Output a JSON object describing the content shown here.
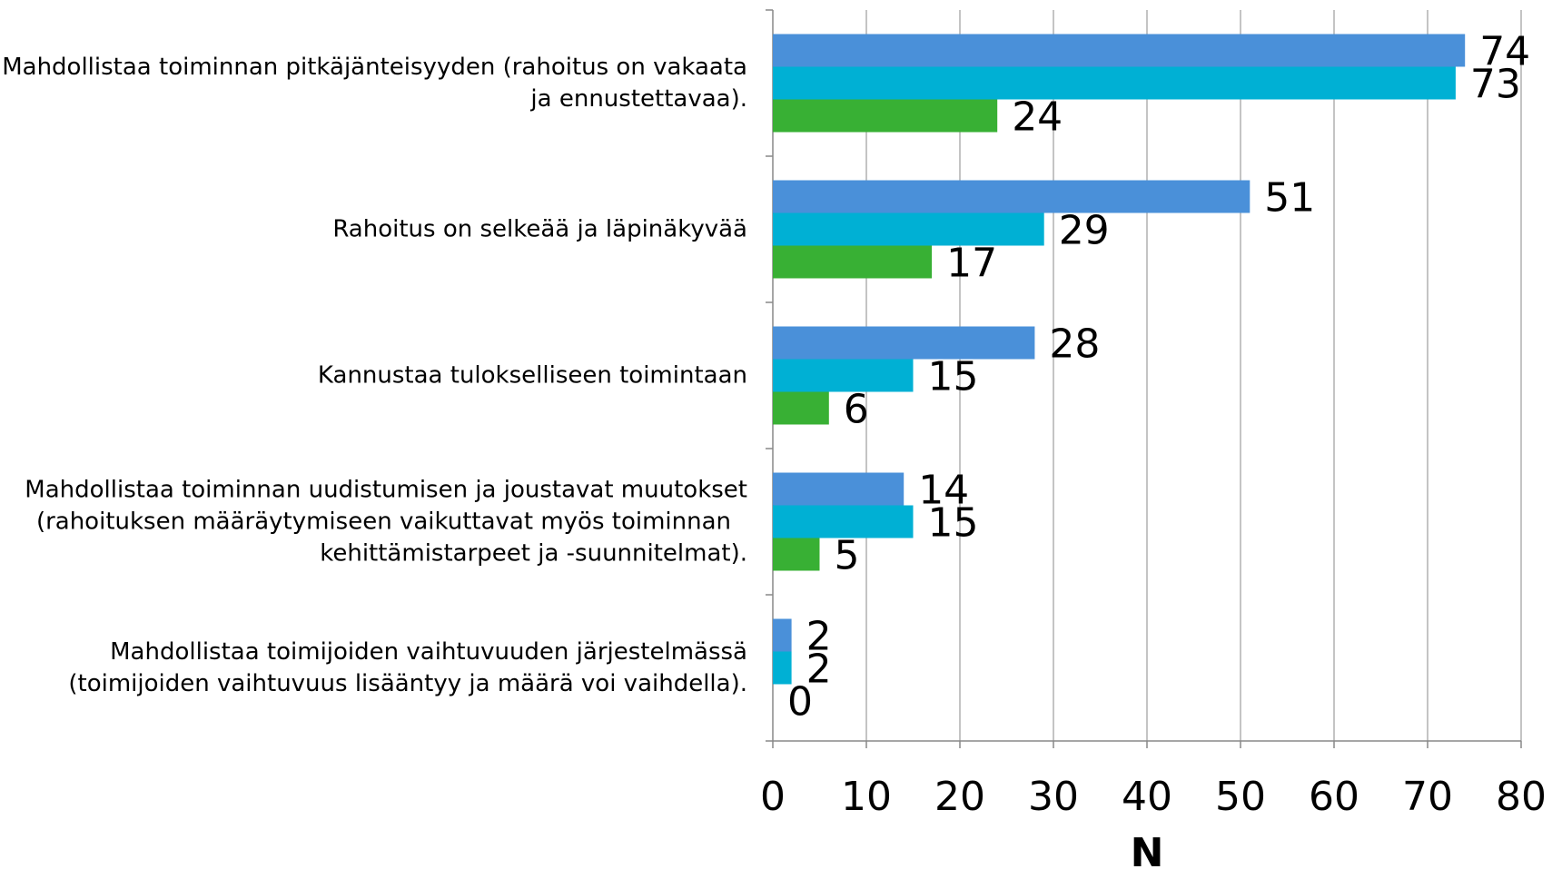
{
  "chart_data": {
    "type": "barh",
    "categories": [
      "Mahdollistaa toiminnan pitkäjänteisyyden (rahoitus on vakaata\nja ennustettavaa).",
      "Rahoitus on selkeää ja läpinäkyvää",
      "Kannustaa tulokselliseen toimintaan",
      "Mahdollistaa toiminnan uudistumisen ja joustavat muutokset\n(rahoituksen määräytymiseen vaikuttavat myös toiminnan\nkehittämistarpeet ja -suunnitelmat).",
      "Mahdollistaa toimijoiden vaihtuvuuden järjestelmässä\n(toimijoiden vaihtuvuus lisääntyy ja määrä voi vaihdella)."
    ],
    "series": [
      {
        "color": "#4a90d9",
        "values": [
          74,
          51,
          28,
          14,
          2
        ]
      },
      {
        "color": "#00b0d4",
        "values": [
          73,
          29,
          15,
          15,
          2
        ]
      },
      {
        "color": "#38b034",
        "values": [
          24,
          17,
          6,
          5,
          0
        ]
      }
    ],
    "xlabel": "N",
    "xlim": [
      0,
      80
    ],
    "xticks": [
      0,
      10,
      20,
      30,
      40,
      50,
      60,
      70,
      80
    ],
    "grid": true
  }
}
